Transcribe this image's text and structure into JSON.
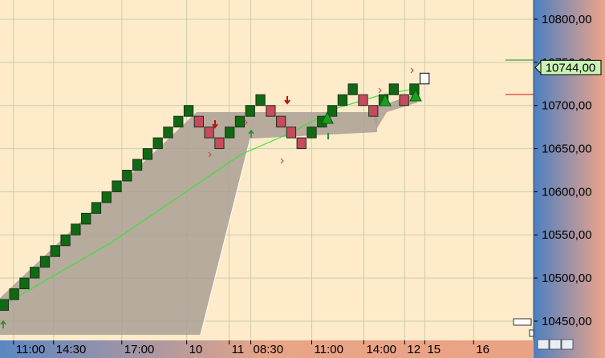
{
  "chart_data": {
    "type": "renko",
    "box": 12.5,
    "start": 10450,
    "values": [
      10462.5,
      10475,
      10487.5,
      10500,
      10512.5,
      10525,
      10537.5,
      10550,
      10562.5,
      10575,
      10587.5,
      10600,
      10612.5,
      10625,
      10637.5,
      10650,
      10662.5,
      10675,
      10687.5,
      10700,
      10675,
      10662.5,
      10650,
      10675,
      10687.5,
      10700,
      10712.5,
      10687.5,
      10675,
      10662.5,
      10650,
      10675,
      10687.5,
      10700,
      10712.5,
      10725,
      10700,
      10687.5,
      10712.5,
      10725,
      10700,
      10725,
      10737.5
    ],
    "up_color": "#0f6a12",
    "down_color": "#c84a5c",
    "xlim": [
      1.1,
      53.1
    ],
    "xticks": [
      {
        "value": 2.42,
        "label": "11:00"
      },
      {
        "value": 6.32,
        "label": "14:30"
      },
      {
        "value": 12.97,
        "label": "17:00"
      },
      {
        "value": 19.29,
        "label": "10"
      },
      {
        "value": 23.43,
        "label": "11"
      },
      {
        "value": 25.54,
        "label": "08:30"
      },
      {
        "value": 31.48,
        "label": "11:00"
      },
      {
        "value": 36.56,
        "label": "14:00"
      },
      {
        "value": 40.54,
        "label": "12"
      },
      {
        "value": 42.5,
        "label": "15"
      },
      {
        "value": 47.26,
        "label": "16"
      }
    ],
    "ylim": [
      10427.7,
      10822.3
    ],
    "yticks": [
      {
        "value": 10450,
        "label": "10450,00"
      },
      {
        "value": 10500,
        "label": "10500,00"
      },
      {
        "value": 10550,
        "label": "10550,00"
      },
      {
        "value": 10600,
        "label": "10600,00"
      },
      {
        "value": 10650,
        "label": "10650,00"
      },
      {
        "value": 10700,
        "label": "10700,00"
      },
      {
        "value": 10750,
        "label": "10750,00"
      },
      {
        "value": 10800,
        "label": "10800,00"
      }
    ],
    "price_marker": {
      "value": 10744,
      "label": "10744,00"
    },
    "grid": true
  }
}
